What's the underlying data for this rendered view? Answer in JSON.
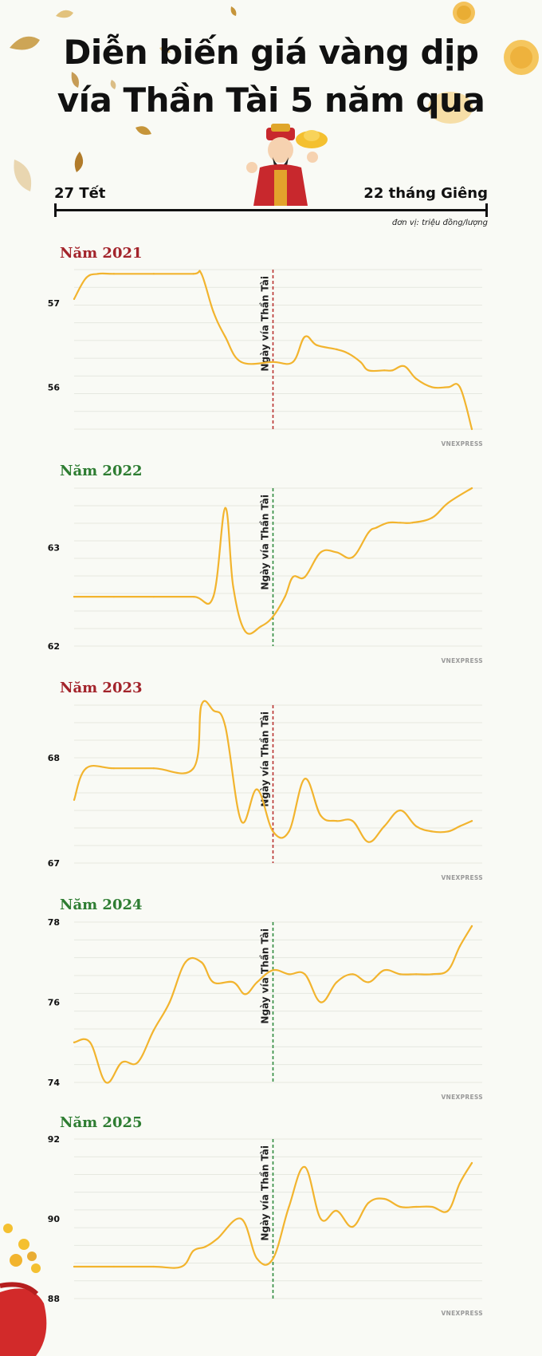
{
  "header": {
    "title_line1": "Diễn biến giá vàng dịp",
    "title_line2": "vía Thần Tài 5 năm qua",
    "timeline_start": "27 Tết",
    "timeline_end": "22 tháng Giêng",
    "unit_note": "đơn vị: triệu đồng/lượng"
  },
  "marker_label": "Ngày vía Thần Tài",
  "credit": "VNEXPRESS",
  "colors": {
    "line": "#f2b42e",
    "red_title": "#a3242b",
    "green_title": "#2e7d32",
    "red_marker": "#b8312f",
    "green_marker": "#2e8b3d",
    "grid": "#e6e8e0",
    "background": "#f9faf5"
  },
  "chart_data": [
    {
      "type": "line",
      "title": "Năm 2021",
      "title_color": "red",
      "ylim": [
        55.5,
        57.4
      ],
      "yticks": [
        56,
        57
      ],
      "ytick_labels": [
        "56",
        "57"
      ],
      "marker_color": "red",
      "marker_x": 0.5,
      "x": [
        0,
        0.03,
        0.06,
        0.1,
        0.2,
        0.3,
        0.32,
        0.35,
        0.38,
        0.42,
        0.5,
        0.55,
        0.58,
        0.61,
        0.66,
        0.69,
        0.72,
        0.74,
        0.78,
        0.8,
        0.83,
        0.86,
        0.9,
        0.94,
        0.97,
        1.0
      ],
      "y": [
        57.05,
        57.3,
        57.35,
        57.35,
        57.35,
        57.35,
        57.35,
        56.9,
        56.6,
        56.3,
        56.3,
        56.3,
        56.6,
        56.5,
        56.45,
        56.4,
        56.3,
        56.2,
        56.2,
        56.2,
        56.25,
        56.1,
        56.0,
        56.0,
        56.0,
        55.5
      ]
    },
    {
      "type": "line",
      "title": "Năm 2022",
      "title_color": "green",
      "ylim": [
        62.0,
        63.6
      ],
      "yticks": [
        62,
        63
      ],
      "ytick_labels": [
        "62",
        "63"
      ],
      "marker_color": "green",
      "marker_x": 0.5,
      "x": [
        0,
        0.1,
        0.2,
        0.3,
        0.35,
        0.38,
        0.4,
        0.43,
        0.47,
        0.5,
        0.53,
        0.55,
        0.58,
        0.62,
        0.66,
        0.7,
        0.74,
        0.76,
        0.79,
        0.82,
        0.85,
        0.9,
        0.94,
        1.0
      ],
      "y": [
        62.5,
        62.5,
        62.5,
        62.5,
        62.5,
        63.4,
        62.6,
        62.15,
        62.2,
        62.3,
        62.5,
        62.7,
        62.7,
        62.95,
        62.95,
        62.9,
        63.15,
        63.2,
        63.25,
        63.25,
        63.25,
        63.3,
        63.45,
        63.6
      ]
    },
    {
      "type": "line",
      "title": "Năm 2023",
      "title_color": "red",
      "ylim": [
        67.0,
        68.5
      ],
      "yticks": [
        67,
        68
      ],
      "ytick_labels": [
        "67",
        "68"
      ],
      "marker_color": "red",
      "marker_x": 0.5,
      "x": [
        0,
        0.03,
        0.1,
        0.2,
        0.3,
        0.32,
        0.35,
        0.38,
        0.42,
        0.46,
        0.5,
        0.54,
        0.58,
        0.62,
        0.66,
        0.7,
        0.74,
        0.78,
        0.82,
        0.86,
        0.9,
        0.94,
        0.97,
        1.0
      ],
      "y": [
        67.6,
        67.9,
        67.9,
        67.9,
        67.9,
        68.5,
        68.45,
        68.3,
        67.4,
        67.7,
        67.3,
        67.3,
        67.8,
        67.45,
        67.4,
        67.4,
        67.2,
        67.35,
        67.5,
        67.35,
        67.3,
        67.3,
        67.35,
        67.4
      ]
    },
    {
      "type": "line",
      "title": "Năm 2024",
      "title_color": "green",
      "ylim": [
        74.0,
        78.0
      ],
      "yticks": [
        74,
        76,
        78
      ],
      "ytick_labels": [
        "74",
        "76",
        "78"
      ],
      "marker_color": "green",
      "marker_x": 0.5,
      "x": [
        0,
        0.04,
        0.08,
        0.12,
        0.16,
        0.2,
        0.24,
        0.28,
        0.32,
        0.35,
        0.4,
        0.43,
        0.46,
        0.5,
        0.54,
        0.58,
        0.62,
        0.66,
        0.7,
        0.74,
        0.78,
        0.82,
        0.86,
        0.9,
        0.94,
        0.97,
        1.0
      ],
      "y": [
        75.0,
        75.0,
        74.0,
        74.5,
        74.5,
        75.3,
        76.0,
        77.0,
        77.0,
        76.5,
        76.5,
        76.2,
        76.5,
        76.8,
        76.7,
        76.7,
        76.0,
        76.5,
        76.7,
        76.5,
        76.8,
        76.7,
        76.7,
        76.7,
        76.8,
        77.4,
        77.9
      ]
    },
    {
      "type": "line",
      "title": "Năm 2025",
      "title_color": "green",
      "ylim": [
        88.0,
        92.0
      ],
      "yticks": [
        88,
        90,
        92
      ],
      "ytick_labels": [
        "88",
        "90",
        "92"
      ],
      "marker_color": "green",
      "marker_x": 0.5,
      "x": [
        0,
        0.1,
        0.2,
        0.27,
        0.3,
        0.33,
        0.36,
        0.42,
        0.46,
        0.5,
        0.54,
        0.58,
        0.62,
        0.66,
        0.7,
        0.74,
        0.78,
        0.82,
        0.86,
        0.9,
        0.94,
        0.97,
        1.0
      ],
      "y": [
        88.8,
        88.8,
        88.8,
        88.8,
        89.2,
        89.3,
        89.5,
        90.0,
        89.0,
        89.0,
        90.3,
        91.3,
        90.0,
        90.2,
        89.8,
        90.4,
        90.5,
        90.3,
        90.3,
        90.3,
        90.2,
        90.9,
        91.4
      ]
    }
  ]
}
